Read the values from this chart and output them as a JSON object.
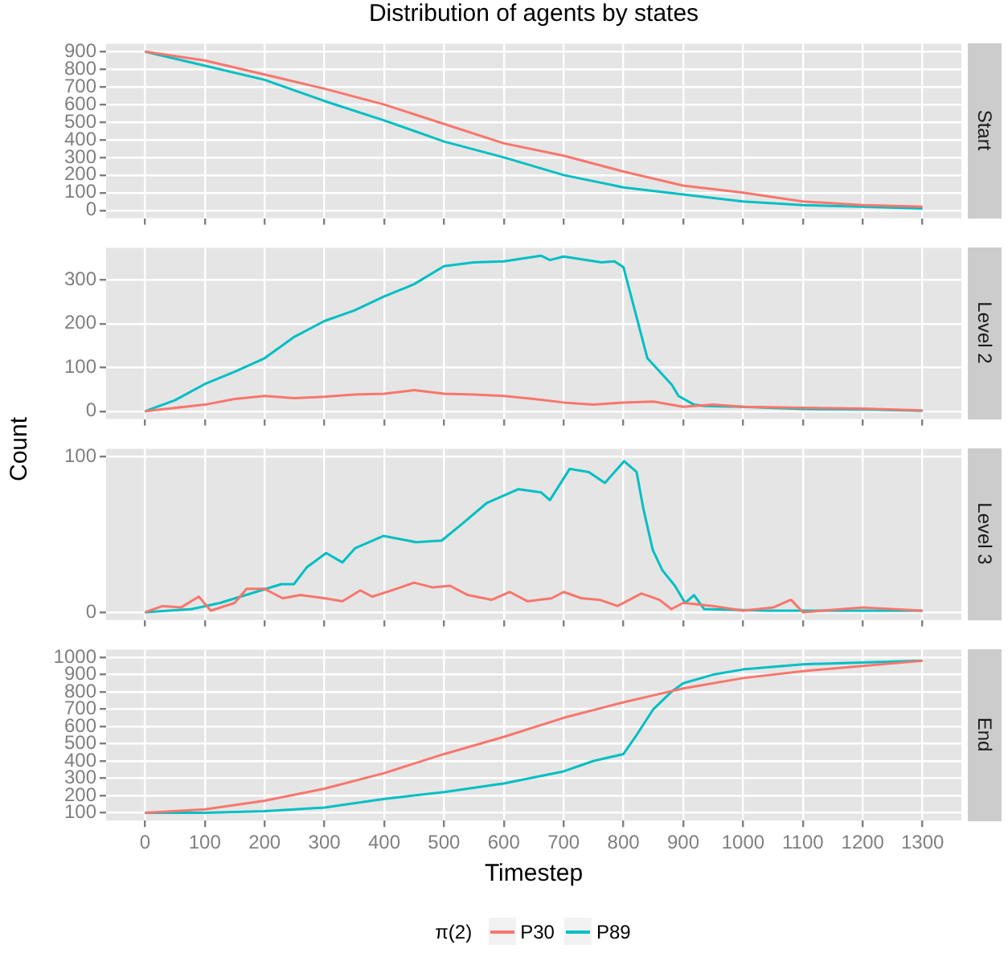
{
  "chart_data": [
    {
      "type": "line",
      "title": "Distribution of agents by states",
      "annotations": [
        "Start"
      ],
      "xlim": [
        -65,
        1365
      ],
      "xticks": [
        0,
        100,
        200,
        300,
        400,
        500,
        600,
        700,
        800,
        900,
        1000,
        1100,
        1200,
        1300
      ],
      "ylim": [
        -45,
        945
      ],
      "yticks": [
        0,
        100,
        200,
        300,
        400,
        500,
        600,
        700,
        800,
        900
      ],
      "grid": true,
      "tick_labels": "y",
      "series": [
        {
          "color": "#f8766d",
          "x": [
            0,
            100,
            200,
            300,
            400,
            500,
            600,
            700,
            800,
            900,
            1000,
            1100,
            1200,
            1300
          ],
          "values": [
            900,
            850,
            770,
            690,
            600,
            490,
            380,
            310,
            220,
            140,
            100,
            50,
            30,
            20
          ]
        },
        {
          "color": "#00bfc4",
          "x": [
            0,
            100,
            200,
            300,
            400,
            500,
            600,
            700,
            800,
            900,
            1000,
            1100,
            1200,
            1300
          ],
          "values": [
            900,
            820,
            740,
            620,
            510,
            390,
            300,
            200,
            130,
            90,
            50,
            30,
            20,
            10
          ]
        }
      ]
    },
    {
      "type": "line",
      "annotations": [
        "Level 2"
      ],
      "xlim": [
        -65,
        1365
      ],
      "xticks": [
        0,
        100,
        200,
        300,
        400,
        500,
        600,
        700,
        800,
        900,
        1000,
        1100,
        1200,
        1300
      ],
      "ylim": [
        -18,
        373
      ],
      "yticks": [
        0,
        100,
        200,
        300
      ],
      "grid": true,
      "tick_labels": "y",
      "series": [
        {
          "color": "#f8766d",
          "x": [
            0,
            100,
            150,
            200,
            250,
            300,
            350,
            400,
            450,
            500,
            550,
            600,
            650,
            700,
            750,
            800,
            850,
            900,
            950,
            1000,
            1100,
            1200,
            1300
          ],
          "values": [
            0,
            15,
            28,
            35,
            30,
            33,
            38,
            40,
            48,
            40,
            38,
            35,
            28,
            20,
            15,
            20,
            22,
            10,
            15,
            10,
            8,
            6,
            2
          ]
        },
        {
          "color": "#00bfc4",
          "x": [
            0,
            50,
            100,
            150,
            200,
            250,
            300,
            350,
            400,
            450,
            500,
            550,
            600,
            662,
            677,
            700,
            763,
            785,
            800,
            840,
            881,
            892,
            918,
            935,
            1000,
            1100,
            1200,
            1300
          ],
          "values": [
            0,
            25,
            62,
            90,
            121,
            170,
            206,
            230,
            262,
            290,
            331,
            340,
            342,
            355,
            345,
            353,
            340,
            342,
            329,
            121,
            60,
            35,
            15,
            12,
            10,
            5,
            4,
            1
          ]
        }
      ]
    },
    {
      "type": "line",
      "annotations": [
        "Level 3"
      ],
      "ylabel": "Count",
      "xlim": [
        -65,
        1365
      ],
      "xticks": [
        0,
        100,
        200,
        300,
        400,
        500,
        600,
        700,
        800,
        900,
        1000,
        1100,
        1200,
        1300
      ],
      "ylim": [
        -5,
        105
      ],
      "yticks": [
        0,
        100
      ],
      "grid": true,
      "tick_labels": "y",
      "series": [
        {
          "color": "#f8766d",
          "x": [
            0,
            30,
            60,
            90,
            110,
            150,
            170,
            200,
            230,
            260,
            300,
            330,
            360,
            380,
            420,
            450,
            480,
            510,
            540,
            580,
            610,
            640,
            680,
            700,
            730,
            760,
            790,
            830,
            860,
            880,
            900,
            950,
            1000,
            1050,
            1080,
            1100,
            1200,
            1300
          ],
          "values": [
            0,
            4,
            3,
            10,
            1,
            6,
            15,
            15,
            9,
            11,
            9,
            7,
            14,
            10,
            15,
            19,
            16,
            17,
            11,
            8,
            13,
            7,
            9,
            13,
            9,
            8,
            4,
            12,
            8,
            2,
            6,
            4,
            1,
            3,
            8,
            0,
            3,
            1
          ]
        },
        {
          "color": "#00bfc4",
          "x": [
            0,
            78,
            126,
            185,
            228,
            249,
            271,
            303,
            330,
            351,
            399,
            453,
            496,
            528,
            571,
            624,
            662,
            677,
            710,
            742,
            769,
            801,
            822,
            833,
            849,
            865,
            886,
            903,
            918,
            935,
            1042,
            1149,
            1300
          ],
          "values": [
            0,
            2,
            6,
            13,
            18,
            18,
            29,
            38,
            32,
            41,
            49,
            45,
            46,
            56,
            70,
            79,
            77,
            72,
            92,
            90,
            83,
            97,
            90,
            67,
            40,
            27,
            17,
            6,
            11,
            2,
            1,
            1,
            1
          ]
        }
      ]
    },
    {
      "type": "line",
      "annotations": [
        "End"
      ],
      "xlabel": "Timestep",
      "legend": "bottom",
      "legend_title": "π(2)",
      "xlim": [
        -65,
        1365
      ],
      "xticks": [
        0,
        100,
        200,
        300,
        400,
        500,
        600,
        700,
        800,
        900,
        1000,
        1100,
        1200,
        1300
      ],
      "ylim": [
        55,
        1045
      ],
      "yticks": [
        100,
        200,
        300,
        400,
        500,
        600,
        700,
        800,
        900,
        1000
      ],
      "grid": true,
      "series": [
        {
          "name": "P30",
          "color": "#f8766d",
          "x": [
            0,
            100,
            200,
            300,
            400,
            500,
            600,
            700,
            800,
            850,
            900,
            1000,
            1100,
            1200,
            1300
          ],
          "values": [
            100,
            120,
            170,
            240,
            330,
            440,
            540,
            650,
            740,
            780,
            820,
            880,
            920,
            950,
            980
          ]
        },
        {
          "name": "P89",
          "color": "#00bfc4",
          "x": [
            0,
            100,
            200,
            300,
            400,
            500,
            600,
            700,
            750,
            800,
            820,
            850,
            880,
            900,
            950,
            1000,
            1100,
            1200,
            1300
          ],
          "values": [
            100,
            100,
            110,
            130,
            180,
            220,
            270,
            340,
            400,
            440,
            540,
            700,
            800,
            850,
            900,
            930,
            960,
            970,
            980
          ]
        }
      ]
    }
  ]
}
